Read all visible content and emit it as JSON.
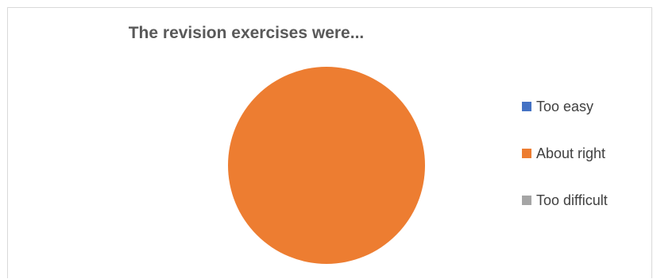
{
  "chart_data": {
    "type": "pie",
    "title": "The revision exercises were...",
    "categories": [
      "Too easy",
      "About right",
      "Too difficult"
    ],
    "values": [
      0,
      100,
      0
    ],
    "colors": [
      "#4472c4",
      "#ed7d31",
      "#a5a5a5"
    ],
    "legend_position": "right"
  }
}
